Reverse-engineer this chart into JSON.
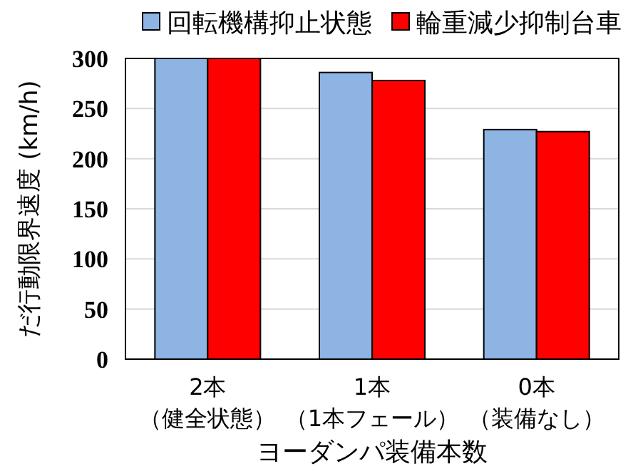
{
  "chart_data": {
    "type": "bar",
    "xlabel": "ヨーダンパ装備本数",
    "ylabel": "だ行動限界速度 (km/h)",
    "categories": [
      "2本（健全状態）",
      "1本（1本フェール）",
      "0本（装備なし）"
    ],
    "series": [
      {
        "name": "回転機構抑止状態",
        "color": "#8eb4e3",
        "values": [
          300,
          286,
          229
        ]
      },
      {
        "name": "輪重減少抑制台車",
        "color": "#ff0000",
        "values": [
          300,
          278,
          227
        ]
      }
    ],
    "ylim": [
      0,
      300
    ],
    "yticks": [
      0,
      50,
      100,
      150,
      200,
      250,
      300
    ],
    "grid": "y",
    "legend": "top"
  }
}
